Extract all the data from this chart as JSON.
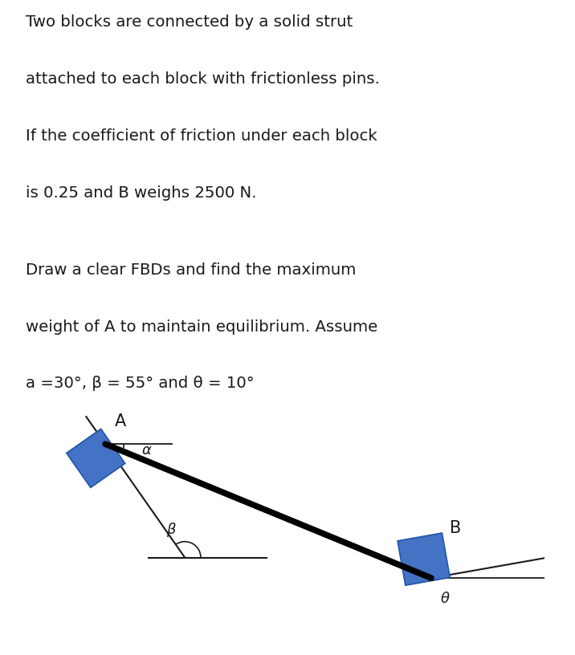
{
  "text_para1_lines": [
    "Two blocks are connected by a solid strut",
    "attached to each block with frictionless pins.",
    "If the coefficient of friction under each block",
    "is 0.25 and B weighs 2500 N."
  ],
  "text_para2_lines": [
    "Draw a clear FBDs and find the maximum",
    "weight of A to maintain equilibrium. Assume",
    "a =30°, β = 55° and θ = 10°"
  ],
  "alpha_deg": 30,
  "beta_deg": 55,
  "theta_deg": 10,
  "block_color": "#4472C4",
  "block_edge_color": "#2255aa",
  "strut_color": "#000000",
  "line_color": "#1a1a1a",
  "bg_color": "#ffffff",
  "label_A": "A",
  "label_B": "B",
  "label_alpha": "α",
  "label_beta": "β",
  "label_theta": "θ",
  "text_fontsize": 14.2,
  "label_fontsize": 13
}
